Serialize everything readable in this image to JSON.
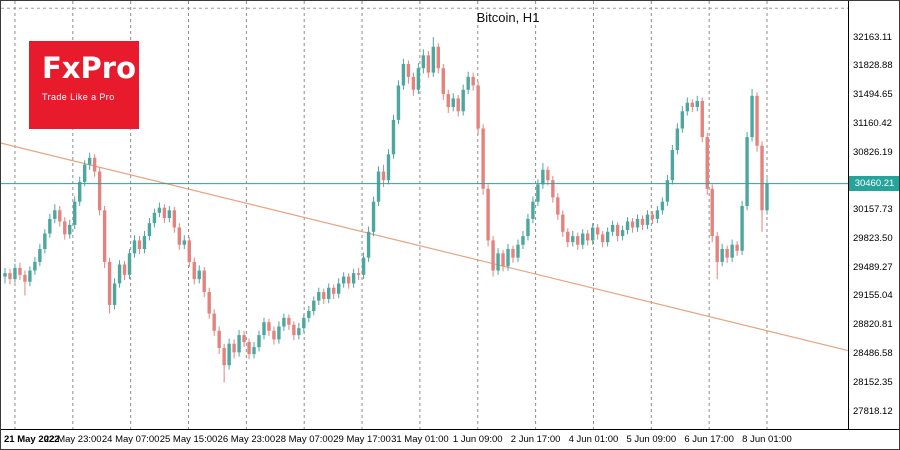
{
  "header": {
    "title": "Bitcoin, H1"
  },
  "logo": {
    "name": "FxPro",
    "tagline": "Trade Like a Pro"
  },
  "colors": {
    "background": "#ffffff",
    "text": "#000000",
    "bull": "#4DA79F",
    "bear": "#E4837D",
    "separator": "#8C8C8C",
    "top_dashed_line": "#A0A0A0",
    "axis": "#000000",
    "price_line": "#26A49C",
    "price_tag_bg": "#26A49C",
    "price_tag_text": "#ffffff",
    "trendline": "#E8A37F",
    "logo_bg": "#E81B2C",
    "logo_text": "#ffffff"
  },
  "chart_data": {
    "type": "candlestick",
    "symbol": "Bitcoin",
    "timeframe": "H1",
    "title": "Bitcoin, H1",
    "grid": "vertical dashed period separators, no legend",
    "ylim": [
      27650,
      32500
    ],
    "upper_grid_line_price": 32497.34,
    "y_axis_labels": [
      "32163.11",
      "31828.88",
      "31494.65",
      "31160.42",
      "30826.19",
      "30157.73",
      "29823.50",
      "29489.27",
      "29155.04",
      "28820.81",
      "28486.58",
      "28152.35",
      "27818.12"
    ],
    "x_axis_labels": [
      "21 May 2022",
      "22 May 23:00",
      "24 May 07:00",
      "25 May 15:00",
      "26 May 23:00",
      "28 May 07:00",
      "29 May 17:00",
      "31 May 01:00",
      "1 Jun 09:00",
      "2 Jun 17:00",
      "4 Jun 01:00",
      "5 Jun 09:00",
      "6 Jun 17:00",
      "8 Jun 01:00"
    ],
    "price_line": {
      "price": 30460.21,
      "label": "30460.21"
    },
    "trendline": {
      "type": "descending",
      "start_price": 30930,
      "end_price": 28520
    },
    "candles": [
      [
        29380,
        29480,
        29300,
        29420
      ],
      [
        29420,
        29470,
        29290,
        29350
      ],
      [
        29350,
        29530,
        29310,
        29480
      ],
      [
        29480,
        29540,
        29340,
        29400
      ],
      [
        29400,
        29450,
        29160,
        29320
      ],
      [
        29320,
        29500,
        29270,
        29450
      ],
      [
        29450,
        29610,
        29400,
        29550
      ],
      [
        29550,
        29760,
        29500,
        29700
      ],
      [
        29700,
        29930,
        29650,
        29880
      ],
      [
        29880,
        30110,
        29830,
        30050
      ],
      [
        30050,
        30220,
        30000,
        30150
      ],
      [
        30150,
        30200,
        29960,
        30020
      ],
      [
        30020,
        30070,
        29810,
        29870
      ],
      [
        29870,
        30040,
        29820,
        29980
      ],
      [
        29980,
        30310,
        29930,
        30250
      ],
      [
        30250,
        30540,
        30200,
        30480
      ],
      [
        30480,
        30730,
        30430,
        30680
      ],
      [
        30680,
        30820,
        30620,
        30760
      ],
      [
        30760,
        30800,
        30540,
        30600
      ],
      [
        30600,
        30650,
        30090,
        30150
      ],
      [
        30150,
        30200,
        29480,
        29550
      ],
      [
        29550,
        29600,
        28950,
        29050
      ],
      [
        29050,
        29360,
        29000,
        29300
      ],
      [
        29300,
        29570,
        29250,
        29520
      ],
      [
        29520,
        29560,
        29340,
        29400
      ],
      [
        29400,
        29700,
        29350,
        29650
      ],
      [
        29650,
        29860,
        29600,
        29800
      ],
      [
        29800,
        29850,
        29640,
        29700
      ],
      [
        29700,
        29910,
        29650,
        29850
      ],
      [
        29850,
        30060,
        29800,
        30000
      ],
      [
        30000,
        30170,
        29950,
        30120
      ],
      [
        30120,
        30240,
        30070,
        30180
      ],
      [
        30180,
        30220,
        30000,
        30060
      ],
      [
        30060,
        30200,
        30010,
        30150
      ],
      [
        30150,
        30190,
        29890,
        29950
      ],
      [
        29950,
        30000,
        29690,
        29750
      ],
      [
        29750,
        29860,
        29700,
        29800
      ],
      [
        29800,
        29840,
        29490,
        29550
      ],
      [
        29550,
        29600,
        29290,
        29350
      ],
      [
        29350,
        29510,
        29300,
        29450
      ],
      [
        29450,
        29490,
        29140,
        29200
      ],
      [
        29200,
        29250,
        28890,
        28950
      ],
      [
        28950,
        29000,
        28690,
        28750
      ],
      [
        28750,
        28800,
        28480,
        28550
      ],
      [
        28550,
        28600,
        28150,
        28350
      ],
      [
        28350,
        28660,
        28300,
        28600
      ],
      [
        28600,
        28650,
        28430,
        28500
      ],
      [
        28500,
        28760,
        28450,
        28700
      ],
      [
        28700,
        28750,
        28560,
        28620
      ],
      [
        28620,
        28660,
        28420,
        28480
      ],
      [
        28480,
        28620,
        28430,
        28560
      ],
      [
        28560,
        28750,
        28510,
        28700
      ],
      [
        28700,
        28900,
        28650,
        28850
      ],
      [
        28850,
        28890,
        28690,
        28750
      ],
      [
        28750,
        28800,
        28590,
        28650
      ],
      [
        28650,
        28860,
        28600,
        28800
      ],
      [
        28800,
        28950,
        28750,
        28900
      ],
      [
        28900,
        28940,
        28760,
        28820
      ],
      [
        28820,
        28860,
        28640,
        28700
      ],
      [
        28700,
        28840,
        28650,
        28780
      ],
      [
        28780,
        28950,
        28730,
        28900
      ],
      [
        28900,
        29040,
        28850,
        28980
      ],
      [
        28980,
        29150,
        28930,
        29100
      ],
      [
        29100,
        29250,
        29050,
        29200
      ],
      [
        29200,
        29240,
        29060,
        29120
      ],
      [
        29120,
        29300,
        29070,
        29250
      ],
      [
        29250,
        29290,
        29120,
        29180
      ],
      [
        29180,
        29360,
        29130,
        29300
      ],
      [
        29300,
        29430,
        29250,
        29380
      ],
      [
        29380,
        29420,
        29240,
        29300
      ],
      [
        29300,
        29470,
        29250,
        29420
      ],
      [
        29420,
        29480,
        29340,
        29400
      ],
      [
        29400,
        29660,
        29350,
        29600
      ],
      [
        29600,
        29960,
        29550,
        29900
      ],
      [
        29900,
        30310,
        29850,
        30250
      ],
      [
        30250,
        30660,
        30200,
        30600
      ],
      [
        30600,
        30680,
        30420,
        30500
      ],
      [
        30500,
        30860,
        30450,
        30800
      ],
      [
        30800,
        31260,
        30750,
        31200
      ],
      [
        31200,
        31660,
        31150,
        31600
      ],
      [
        31600,
        31910,
        31550,
        31850
      ],
      [
        31850,
        31890,
        31620,
        31700
      ],
      [
        31700,
        31750,
        31480,
        31550
      ],
      [
        31550,
        31860,
        31500,
        31800
      ],
      [
        31800,
        32020,
        31740,
        31950
      ],
      [
        31950,
        32000,
        31690,
        31750
      ],
      [
        31750,
        32163,
        31700,
        32050
      ],
      [
        32050,
        32090,
        31740,
        31800
      ],
      [
        31800,
        31850,
        31430,
        31500
      ],
      [
        31500,
        31550,
        31280,
        31350
      ],
      [
        31350,
        31510,
        31300,
        31450
      ],
      [
        31450,
        31490,
        31240,
        31300
      ],
      [
        31300,
        31610,
        31250,
        31550
      ],
      [
        31550,
        31760,
        31500,
        31700
      ],
      [
        31700,
        31750,
        31540,
        31600
      ],
      [
        31600,
        31650,
        31030,
        31100
      ],
      [
        31100,
        31150,
        30330,
        30400
      ],
      [
        30400,
        30450,
        29730,
        29800
      ],
      [
        29800,
        29850,
        29380,
        29450
      ],
      [
        29450,
        29710,
        29400,
        29650
      ],
      [
        29650,
        29690,
        29440,
        29500
      ],
      [
        29500,
        29760,
        29450,
        29700
      ],
      [
        29700,
        29740,
        29540,
        29600
      ],
      [
        29600,
        29810,
        29550,
        29750
      ],
      [
        29750,
        29910,
        29700,
        29850
      ],
      [
        29850,
        30110,
        29800,
        30050
      ],
      [
        30050,
        30310,
        30000,
        30250
      ],
      [
        30250,
        30510,
        30200,
        30450
      ],
      [
        30450,
        30700,
        30400,
        30620
      ],
      [
        30620,
        30660,
        30440,
        30500
      ],
      [
        30500,
        30550,
        30240,
        30300
      ],
      [
        30300,
        30350,
        30040,
        30100
      ],
      [
        30100,
        30150,
        29840,
        29900
      ],
      [
        29900,
        29940,
        29720,
        29780
      ],
      [
        29780,
        29910,
        29730,
        29850
      ],
      [
        29850,
        29890,
        29690,
        29750
      ],
      [
        29750,
        29930,
        29700,
        29880
      ],
      [
        29880,
        29920,
        29740,
        29800
      ],
      [
        29800,
        30000,
        29750,
        29950
      ],
      [
        29950,
        29990,
        29810,
        29870
      ],
      [
        29870,
        29910,
        29720,
        29780
      ],
      [
        29780,
        29950,
        29730,
        29900
      ],
      [
        29900,
        30030,
        29850,
        29980
      ],
      [
        29980,
        30010,
        29790,
        29850
      ],
      [
        29850,
        29970,
        29800,
        29920
      ],
      [
        29920,
        30070,
        29870,
        30020
      ],
      [
        30020,
        30060,
        29890,
        29950
      ],
      [
        29950,
        30100,
        29900,
        30050
      ],
      [
        30050,
        30090,
        29920,
        29980
      ],
      [
        29980,
        30150,
        29930,
        30100
      ],
      [
        30100,
        30140,
        29990,
        30050
      ],
      [
        30050,
        30200,
        30000,
        30150
      ],
      [
        30150,
        30300,
        30100,
        30250
      ],
      [
        30250,
        30560,
        30200,
        30500
      ],
      [
        30500,
        30910,
        30450,
        30850
      ],
      [
        30850,
        31160,
        30800,
        31100
      ],
      [
        31100,
        31360,
        31050,
        31300
      ],
      [
        31300,
        31460,
        31250,
        31400
      ],
      [
        31400,
        31440,
        31290,
        31350
      ],
      [
        31350,
        31480,
        31300,
        31420
      ],
      [
        31420,
        31460,
        30940,
        31000
      ],
      [
        31000,
        31050,
        30330,
        30400
      ],
      [
        30400,
        30450,
        29780,
        29850
      ],
      [
        29850,
        29900,
        29350,
        29550
      ],
      [
        29550,
        29760,
        29500,
        29700
      ],
      [
        29700,
        29740,
        29540,
        29600
      ],
      [
        29600,
        29810,
        29550,
        29750
      ],
      [
        29750,
        29790,
        29620,
        29680
      ],
      [
        29680,
        30260,
        29630,
        30200
      ],
      [
        30200,
        31060,
        30150,
        31000
      ],
      [
        31000,
        31560,
        30950,
        31480
      ],
      [
        31480,
        31520,
        30830,
        30900
      ],
      [
        30900,
        30950,
        29900,
        30150
      ],
      [
        30150,
        30520,
        30100,
        30460
      ]
    ]
  }
}
